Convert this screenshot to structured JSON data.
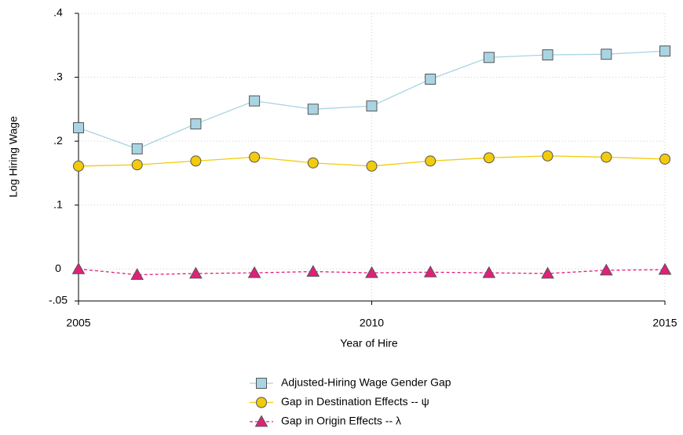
{
  "chart_data": {
    "type": "line",
    "xlabel": "Year of Hire",
    "ylabel": "Log Hiring Wage",
    "x": [
      2005,
      2006,
      2007,
      2008,
      2009,
      2010,
      2011,
      2012,
      2013,
      2014,
      2015
    ],
    "xlim": [
      2005,
      2015
    ],
    "xticks": [
      2005,
      2010,
      2015
    ],
    "ylim": [
      -0.05,
      0.4
    ],
    "yticks": [
      {
        "value": -0.05,
        "label": "-.05"
      },
      0,
      {
        "value": 0.1,
        "label": ".1"
      },
      {
        "value": 0.2,
        "label": ".2"
      },
      {
        "value": 0.3,
        "label": ".3"
      },
      {
        "value": 0.4,
        "label": ".4"
      }
    ],
    "grid": true,
    "legend": "bottom",
    "series": [
      {
        "name": "Adjusted-Hiring Wage Gender Gap",
        "color": "#a9d4e3",
        "marker": "square",
        "linestyle": "solid",
        "values": [
          0.221,
          0.188,
          0.227,
          0.263,
          0.25,
          0.255,
          0.297,
          0.331,
          0.335,
          0.336,
          0.341
        ]
      },
      {
        "name": "Gap in Destination Effects -- ψ",
        "color": "#f2cb0c",
        "marker": "circle",
        "linestyle": "solid",
        "values": [
          0.161,
          0.163,
          0.169,
          0.175,
          0.166,
          0.161,
          0.169,
          0.174,
          0.177,
          0.175,
          0.172
        ]
      },
      {
        "name": "Gap in Origin Effects -- λ",
        "color": "#e0207a",
        "marker": "triangle",
        "linestyle": "dashed",
        "values": [
          0,
          -0.009,
          -0.007,
          -0.006,
          -0.004,
          -0.006,
          -0.005,
          -0.006,
          -0.007,
          -0.002,
          -0.001
        ]
      }
    ]
  }
}
